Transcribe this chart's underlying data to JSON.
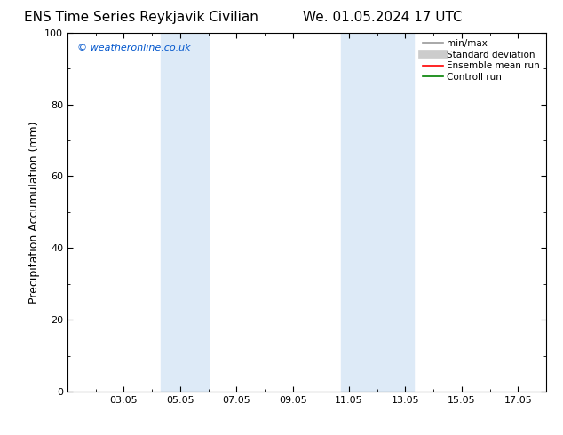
{
  "title_left": "ENS Time Series Reykjavik Civilian",
  "title_right": "We. 01.05.2024 17 UTC",
  "ylabel": "Precipitation Accumulation (mm)",
  "ylim": [
    0,
    100
  ],
  "yticks": [
    0,
    20,
    40,
    60,
    80,
    100
  ],
  "xtick_labels": [
    "03.05",
    "05.05",
    "07.05",
    "09.05",
    "11.05",
    "13.05",
    "15.05",
    "17.05"
  ],
  "xtick_positions": [
    3,
    5,
    7,
    9,
    11,
    13,
    15,
    17
  ],
  "xlim": [
    1,
    18
  ],
  "shaded_bands": [
    {
      "xmin": 4.3,
      "xmax": 6.0,
      "color": "#ddeaf7",
      "alpha": 1.0
    },
    {
      "xmin": 10.7,
      "xmax": 13.3,
      "color": "#ddeaf7",
      "alpha": 1.0
    }
  ],
  "watermark_text": "© weatheronline.co.uk",
  "watermark_color": "#0055cc",
  "background_color": "#ffffff",
  "legend_items": [
    {
      "label": "min/max",
      "color": "#999999",
      "lw": 1.2,
      "style": "solid"
    },
    {
      "label": "Standard deviation",
      "color": "#cccccc",
      "lw": 7,
      "style": "solid"
    },
    {
      "label": "Ensemble mean run",
      "color": "#ff0000",
      "lw": 1.2,
      "style": "solid"
    },
    {
      "label": "Controll run",
      "color": "#008000",
      "lw": 1.2,
      "style": "solid"
    }
  ],
  "tick_fontsize": 8,
  "label_fontsize": 9,
  "title_fontsize": 11,
  "watermark_fontsize": 8
}
